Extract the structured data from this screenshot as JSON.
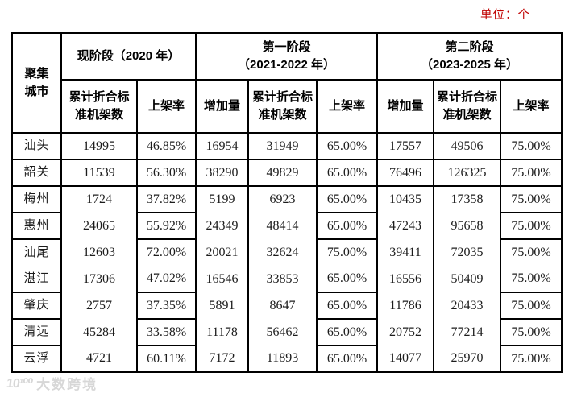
{
  "unit_label": "单位：个",
  "watermark": {
    "logo": "10¹⁰⁰",
    "brand": "大数跨境"
  },
  "table": {
    "corner_header": "聚集\n城市",
    "stage_headers": [
      {
        "label": "现阶段（2020 年）"
      },
      {
        "label": "第一阶段\n（2021-2022 年）"
      },
      {
        "label": "第二阶段\n（2023-2025 年）"
      }
    ],
    "metric_headers": [
      "累计折合标\n准机架数",
      "上架率",
      "增加量",
      "累计折合标\n准机架数",
      "上架率",
      "增加量",
      "累计折合标\n准机架数",
      "上架率"
    ],
    "rows": [
      {
        "city": "汕头",
        "values": [
          "14995",
          "46.85%",
          "16954",
          "31949",
          "65.00%",
          "17557",
          "49506",
          "75.00%"
        ]
      },
      {
        "city": "韶关",
        "values": [
          "11539",
          "56.30%",
          "38290",
          "49829",
          "65.00%",
          "76496",
          "126325",
          "75.00%"
        ]
      },
      {
        "city": "梅州",
        "values": [
          "1724",
          "37.82%",
          "5199",
          "6923",
          "65.00%",
          "10435",
          "17358",
          "75.00%"
        ]
      },
      {
        "city": "惠州",
        "values": [
          "24065",
          "55.92%",
          "24349",
          "48414",
          "65.00%",
          "47243",
          "95658",
          "75.00%"
        ]
      },
      {
        "city": "汕尾",
        "values": [
          "12603",
          "72.00%",
          "20021",
          "32624",
          "75.00%",
          "39411",
          "72035",
          "75.00%"
        ]
      },
      {
        "city": "湛江",
        "values": [
          "17306",
          "47.02%",
          "16546",
          "33853",
          "65.00%",
          "16556",
          "50409",
          "75.00%"
        ]
      },
      {
        "city": "肇庆",
        "values": [
          "2757",
          "37.35%",
          "5891",
          "8647",
          "65.00%",
          "11786",
          "20433",
          "75.00%"
        ]
      },
      {
        "city": "清远",
        "values": [
          "45284",
          "33.58%",
          "11178",
          "56462",
          "65.00%",
          "20752",
          "77214",
          "75.00%"
        ]
      },
      {
        "city": "云浮",
        "values": [
          "4721",
          "60.11%",
          "7172",
          "11893",
          "65.00%",
          "14077",
          "25970",
          "75.00%"
        ]
      }
    ]
  }
}
